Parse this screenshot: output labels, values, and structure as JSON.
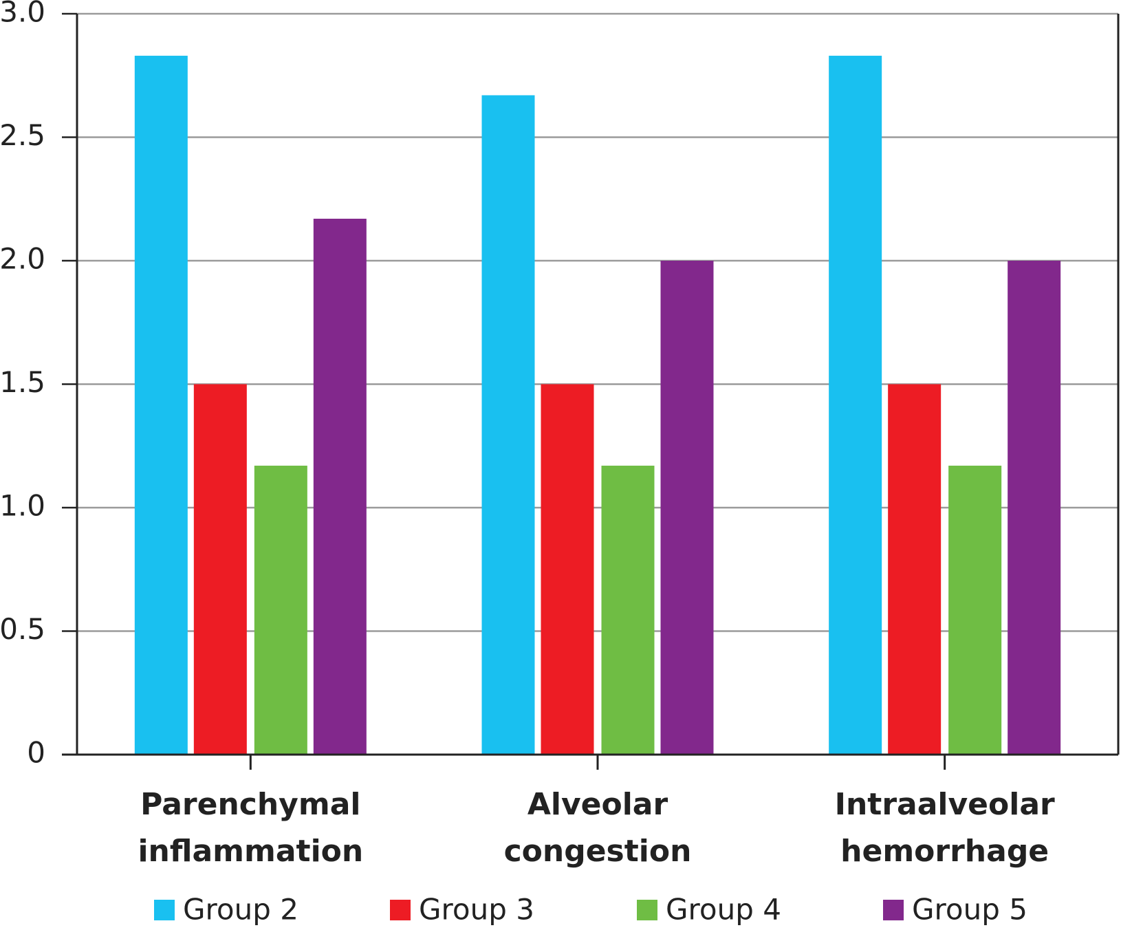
{
  "chart_data": {
    "type": "bar",
    "categories": [
      "Parenchymal inflammation",
      "Alveolar congestion",
      "Intraalveolar hemorrhage"
    ],
    "series": [
      {
        "name": "Group 2",
        "color": "#19c0f0",
        "values": [
          2.83,
          2.67,
          2.83
        ]
      },
      {
        "name": "Group 3",
        "color": "#ed1c24",
        "values": [
          1.5,
          1.5,
          1.5
        ]
      },
      {
        "name": "Group 4",
        "color": "#6fbd44",
        "values": [
          1.17,
          1.17,
          1.17
        ]
      },
      {
        "name": "Group 5",
        "color": "#82288c",
        "values": [
          2.17,
          2.0,
          2.0
        ]
      }
    ],
    "ylim": [
      0,
      3
    ],
    "yticks": [
      0,
      0.5,
      {
        "value": 1,
        "label": "1.0"
      },
      1.5,
      {
        "value": 2,
        "label": "2.0"
      },
      2.5,
      {
        "value": 3,
        "label": "3.0"
      }
    ],
    "grid": true,
    "legend": "bottom"
  }
}
